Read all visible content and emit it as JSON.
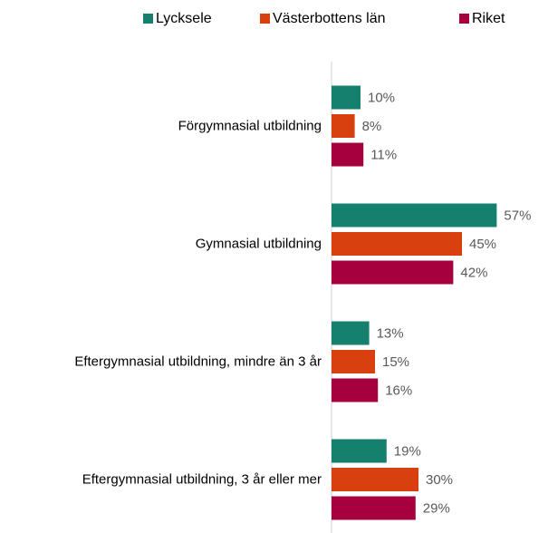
{
  "chart_data": {
    "type": "barh",
    "categories": [
      "Förgymnasial utbildning",
      "Gymnasial utbildning",
      "Eftergymnasial utbildning, mindre än 3 år",
      "Eftergymnasial utbildning, 3 år eller mer"
    ],
    "series": [
      {
        "name": "Lycksele",
        "color": "#16806f",
        "values": [
          10,
          57,
          13,
          19
        ],
        "value_labels": [
          "10%",
          "57%",
          "13%",
          "19%"
        ]
      },
      {
        "name": "Västerbottens län",
        "color": "#d9400f",
        "values": [
          8,
          45,
          15,
          30
        ],
        "value_labels": [
          "8%",
          "45%",
          "15%",
          "30%"
        ]
      },
      {
        "name": "Riket",
        "color": "#a6003f",
        "values": [
          11,
          42,
          16,
          29
        ],
        "value_labels": [
          "11%",
          "42%",
          "16%",
          "29%"
        ]
      }
    ],
    "xlim": [
      0,
      60
    ],
    "legend": "top"
  }
}
